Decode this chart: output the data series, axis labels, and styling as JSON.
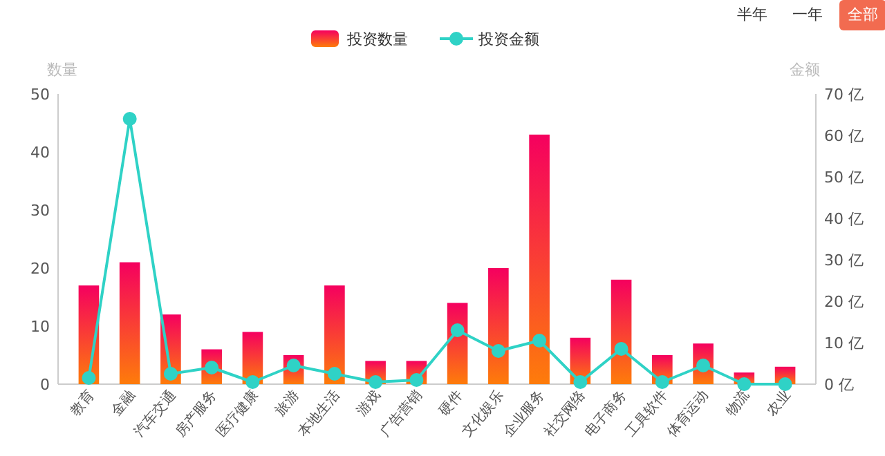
{
  "chart_data": {
    "type": "bar",
    "ylabel": "数量",
    "y2label": "金额",
    "legend": "top",
    "annotations": [
      "半年",
      "一年",
      "全部"
    ],
    "categories": [
      "教育",
      "金融",
      "汽车交通",
      "房产服务",
      "医疗健康",
      "旅游",
      "本地生活",
      "游戏",
      "广告营销",
      "硬件",
      "文化娱乐",
      "企业服务",
      "社交网络",
      "电子商务",
      "工具软件",
      "体育运动",
      "物流",
      "农业"
    ],
    "series": [
      {
        "name": "投资数量",
        "color": "#f5005f",
        "values": [
          17,
          21,
          12,
          6,
          9,
          5,
          17,
          4,
          4,
          14,
          20,
          43,
          8,
          18,
          5,
          7,
          2,
          3
        ]
      },
      {
        "name": "投资金额",
        "type": "line",
        "axis": "y2",
        "color": "#2fd2c6",
        "marker": "circle",
        "values": [
          1.5,
          64,
          2.5,
          4,
          0.5,
          4.5,
          2.5,
          0.5,
          1,
          13,
          8,
          10.5,
          0.5,
          8.5,
          0.5,
          4.5,
          0,
          0
        ]
      }
    ],
    "ylim": [
      0,
      50
    ],
    "yticks": [
      0,
      10,
      20,
      30,
      40,
      50
    ],
    "y2lim": [
      0,
      70
    ],
    "y2ticks": [
      {
        "value": 0,
        "label": "0 亿"
      },
      {
        "value": 10,
        "label": "10 亿"
      },
      {
        "value": 20,
        "label": "20 亿"
      },
      {
        "value": 30,
        "label": "30 亿"
      },
      {
        "value": 40,
        "label": "40 亿"
      },
      {
        "value": 50,
        "label": "50 亿"
      },
      {
        "value": 60,
        "label": "60 亿"
      },
      {
        "value": 70,
        "label": "70 亿"
      }
    ],
    "grid": false
  }
}
